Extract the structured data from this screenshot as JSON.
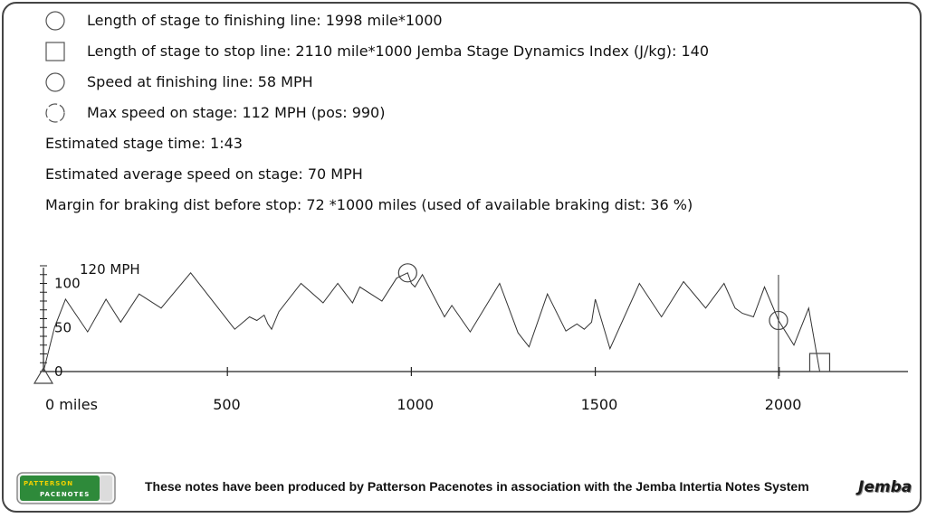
{
  "info": {
    "finish_length": "Length of stage to finishing line: 1998 mile*1000",
    "stop_length": "Length of stage to stop line: 2110 mile*1000 Jemba Stage Dynamics Index (J/kg): 140",
    "finish_speed": "Speed at finishing line: 58 MPH",
    "max_speed": "Max speed on stage: 112 MPH (pos: 990)",
    "stage_time": "Estimated stage time: 1:43",
    "avg_speed": "Estimated average speed on stage: 70 MPH",
    "braking_margin": "Margin for braking dist before stop: 72 *1000 miles (used of available braking dist: 36 %)"
  },
  "icons": {
    "finish": "circle-icon",
    "stop": "square-icon",
    "finish_speed": "circle-icon",
    "max_speed": "dashed-circle-icon"
  },
  "chart_data": {
    "type": "line",
    "ytop_label": "120 MPH",
    "y_ticks": [
      0,
      50,
      100
    ],
    "x_ticks": [
      {
        "value": 0,
        "label": "0 miles"
      },
      {
        "value": 500,
        "label": "500"
      },
      {
        "value": 1000,
        "label": "1000"
      },
      {
        "value": 1500,
        "label": "1500"
      },
      {
        "value": 2000,
        "label": "2000"
      }
    ],
    "xlim": [
      0,
      2350
    ],
    "ylim": [
      0,
      120
    ],
    "series": [
      {
        "x": [
          0,
          30,
          60,
          120,
          170,
          210,
          260,
          320,
          400,
          520,
          560,
          580,
          600,
          610,
          620,
          640,
          700,
          760,
          800,
          840,
          860,
          920,
          960,
          990,
          1000,
          1010,
          1030,
          1090,
          1110,
          1160,
          1240,
          1290,
          1320,
          1370,
          1420,
          1450,
          1470,
          1490,
          1500,
          1540,
          1620,
          1680,
          1740,
          1800,
          1850,
          1880,
          1900,
          1930,
          1960,
          1998,
          2040,
          2080,
          2110
        ],
        "y": [
          0,
          50,
          82,
          45,
          82,
          56,
          88,
          72,
          112,
          48,
          62,
          58,
          64,
          54,
          48,
          68,
          100,
          78,
          100,
          78,
          96,
          80,
          106,
          112,
          100,
          96,
          110,
          62,
          75,
          45,
          100,
          44,
          28,
          88,
          46,
          54,
          48,
          56,
          82,
          26,
          100,
          62,
          102,
          72,
          100,
          72,
          66,
          62,
          96,
          58,
          30,
          72,
          0
        ]
      }
    ],
    "markers": [
      {
        "kind": "circle",
        "x": 990,
        "y": 112,
        "label": "max speed"
      },
      {
        "kind": "circle",
        "x": 1998,
        "y": 58,
        "label": "finish"
      },
      {
        "kind": "square",
        "x": 2110,
        "y": 0,
        "label": "stop"
      },
      {
        "kind": "triangle",
        "x": 0,
        "y": 0,
        "label": "start"
      }
    ],
    "finish_line_x": 1998,
    "grid": false
  },
  "footer": {
    "text": "These notes have been produced by Patterson Pacenotes in association with the Jemba Intertia Notes System",
    "logo_left": "PATTERSON PACENOTES",
    "logo_right": "Jemba"
  }
}
